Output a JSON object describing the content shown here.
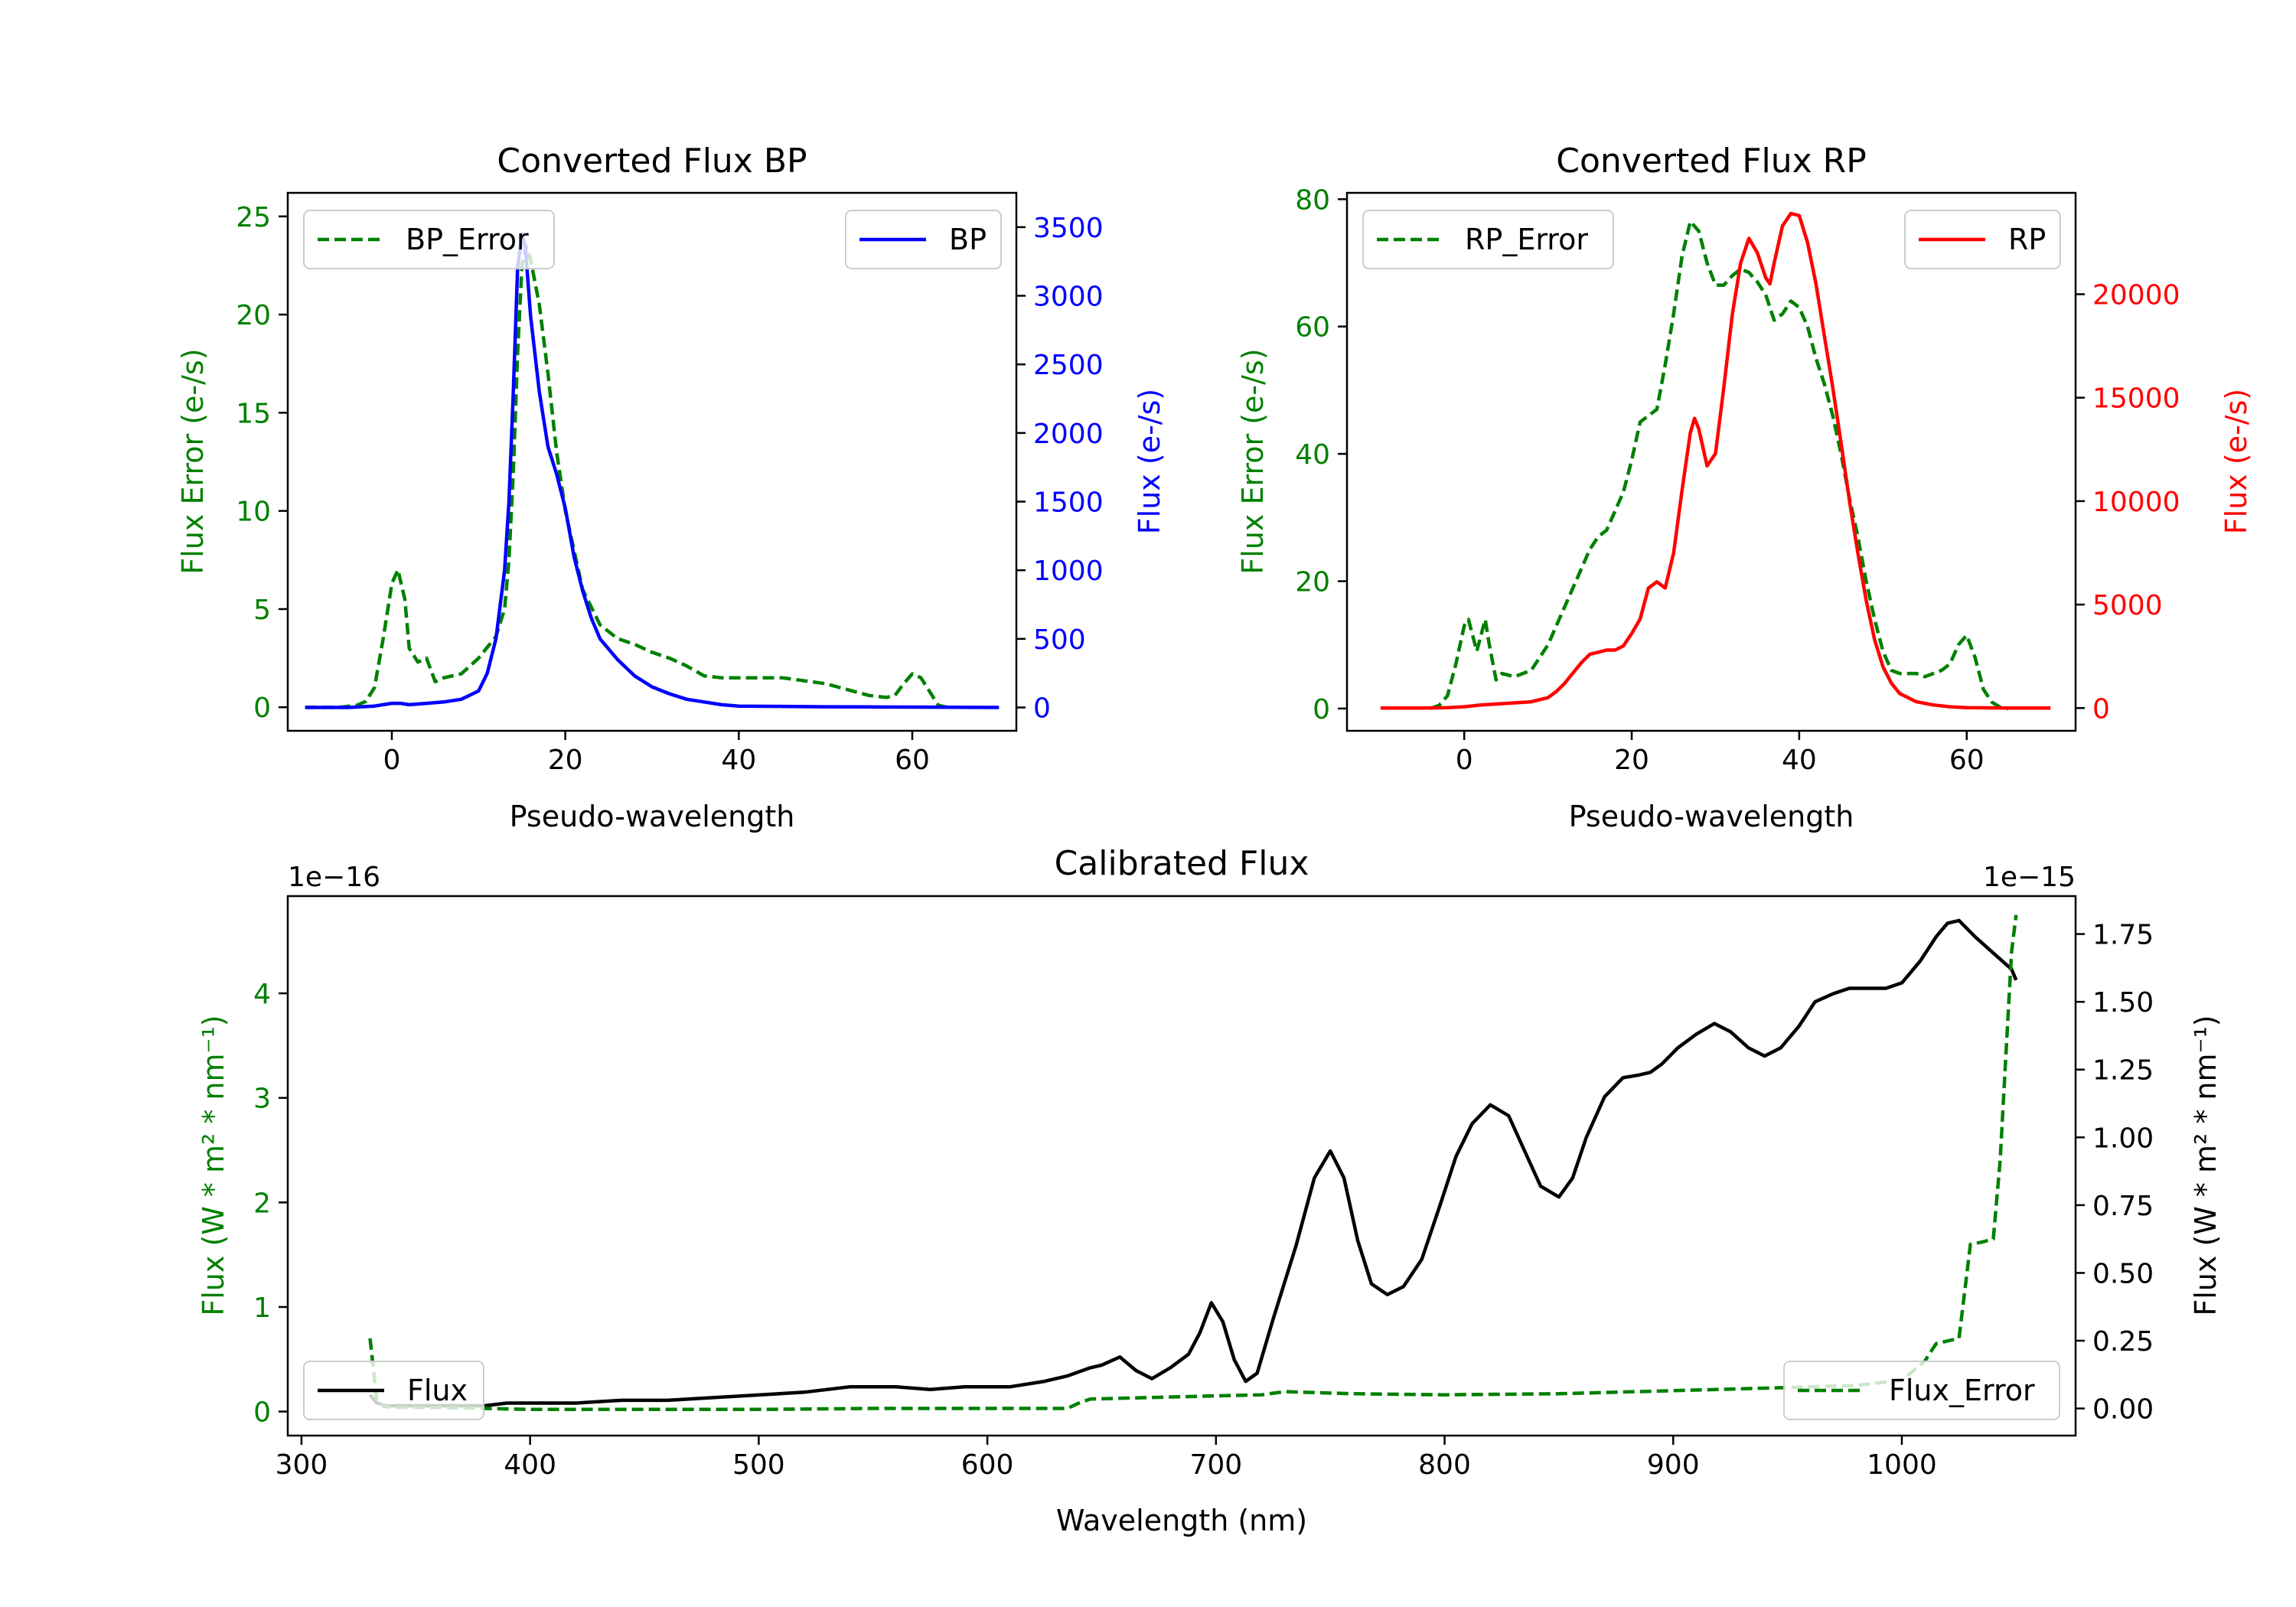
{
  "colors": {
    "green": "#008000",
    "blue": "#0000ff",
    "red": "#ff0000",
    "black": "#000000"
  },
  "chart_data": [
    {
      "id": "bp",
      "type": "line",
      "title": "Converted Flux BP",
      "xlabel": "Pseudo-wavelength",
      "ylabel_left": "Flux Error (e-/s)",
      "ylabel_right": "Flux (e-/s)",
      "xlim": [
        -12,
        72
      ],
      "ylim_left": [
        -1.2,
        26.2
      ],
      "ylim_right": [
        -170,
        3750
      ],
      "xticks": [
        0,
        20,
        40,
        60
      ],
      "yticks_left": [
        0,
        5,
        10,
        15,
        20,
        25
      ],
      "yticks_right": [
        0,
        500,
        1000,
        1500,
        2000,
        2500,
        3000,
        3500
      ],
      "legend_left": "BP_Error",
      "legend_right": "BP",
      "series": [
        {
          "name": "BP_Error",
          "axis": "left",
          "color": "green",
          "dash": true,
          "x": [
            -10,
            -6,
            -4,
            -3,
            -2,
            -1,
            0,
            0.7,
            1.5,
            2,
            3,
            4,
            5,
            6,
            8,
            10,
            12,
            13,
            13.5,
            14,
            14.5,
            15,
            15.5,
            16,
            17,
            18,
            19,
            20,
            22,
            24,
            26,
            28,
            30,
            32,
            34,
            36,
            38,
            40,
            45,
            50,
            55,
            57,
            58,
            59,
            60,
            61,
            62,
            63,
            64
          ],
          "y": [
            0,
            0,
            0.1,
            0.3,
            1.0,
            3.5,
            6.3,
            7.0,
            5.5,
            3.0,
            2.3,
            2.5,
            1.3,
            1.5,
            1.7,
            2.5,
            3.6,
            5.0,
            7.5,
            12.0,
            18.0,
            22.5,
            23.5,
            22.8,
            20.5,
            17.0,
            13.0,
            10.0,
            6.0,
            4.2,
            3.5,
            3.2,
            2.8,
            2.5,
            2.1,
            1.6,
            1.5,
            1.5,
            1.5,
            1.2,
            0.6,
            0.5,
            0.6,
            1.2,
            1.7,
            1.5,
            0.8,
            0.1,
            0
          ]
        },
        {
          "name": "BP",
          "axis": "right",
          "color": "blue",
          "dash": false,
          "x": [
            -10,
            -5,
            -2,
            0,
            1,
            2,
            4,
            6,
            8,
            10,
            11,
            12,
            13,
            13.5,
            14,
            14.5,
            15,
            15.4,
            16,
            17,
            18,
            19,
            20,
            21,
            22,
            23,
            24,
            26,
            28,
            30,
            32,
            34,
            36,
            38,
            40,
            45,
            50,
            55,
            60,
            65,
            70
          ],
          "y": [
            0,
            0,
            10,
            30,
            30,
            20,
            30,
            40,
            60,
            120,
            250,
            500,
            1000,
            1500,
            2300,
            3200,
            3450,
            3350,
            2850,
            2300,
            1900,
            1700,
            1450,
            1100,
            850,
            650,
            500,
            350,
            230,
            150,
            100,
            60,
            40,
            20,
            10,
            8,
            5,
            4,
            3,
            2,
            0
          ]
        }
      ]
    },
    {
      "id": "rp",
      "type": "line",
      "title": "Converted Flux RP",
      "xlabel": "Pseudo-wavelength",
      "ylabel_left": "Flux Error (e-/s)",
      "ylabel_right": "Flux (e-/s)",
      "xlim": [
        -14,
        73
      ],
      "ylim_left": [
        -3.5,
        81
      ],
      "ylim_right": [
        -1100,
        24900
      ],
      "xticks": [
        0,
        20,
        40,
        60
      ],
      "yticks_left": [
        0,
        20,
        40,
        60,
        80
      ],
      "yticks_right": [
        0,
        5000,
        10000,
        15000,
        20000
      ],
      "legend_left": "RP_Error",
      "legend_right": "RP",
      "series": [
        {
          "name": "RP_Error",
          "axis": "left",
          "color": "green",
          "dash": true,
          "x": [
            -4,
            -3,
            -2,
            -1,
            0,
            0.5,
            1.5,
            2.5,
            3,
            3.8,
            4.5,
            6,
            8,
            10,
            12,
            14,
            15,
            16,
            17,
            18,
            19,
            20,
            21,
            22,
            23,
            24,
            25,
            26,
            27,
            28,
            29,
            30,
            31,
            32,
            33,
            34,
            35,
            36,
            37,
            38,
            39,
            40,
            41,
            42,
            43,
            44,
            45,
            46,
            47,
            48,
            49,
            50,
            51,
            52,
            53,
            54,
            55,
            56,
            57,
            58,
            59,
            60,
            61,
            62,
            63,
            64,
            65
          ],
          "y": [
            0,
            0.5,
            2,
            7,
            13,
            14,
            9,
            14,
            10,
            4.5,
            5.5,
            5,
            6,
            10,
            16,
            22,
            25,
            27,
            28,
            31,
            34,
            39,
            45,
            46,
            47,
            54,
            62,
            71,
            76.5,
            75,
            70,
            66.5,
            66.5,
            68,
            69,
            68.5,
            67,
            65,
            61,
            62,
            64,
            63,
            60,
            55,
            51,
            46,
            40,
            33,
            27,
            20,
            14,
            9,
            6,
            5.5,
            5.5,
            5.5,
            5,
            5.5,
            6,
            7,
            10,
            11.5,
            8,
            3,
            1,
            0.2,
            0
          ]
        },
        {
          "name": "RP",
          "axis": "right",
          "color": "red",
          "dash": false,
          "x": [
            -10,
            -5,
            -2,
            0,
            2,
            4,
            6,
            8,
            10,
            11,
            12,
            13,
            14,
            15,
            16,
            17,
            18,
            19,
            20,
            21,
            22,
            23,
            24,
            25,
            26,
            27,
            27.5,
            28,
            29,
            30,
            31,
            32,
            33,
            34,
            35,
            36,
            36.5,
            37,
            38,
            39,
            40,
            41,
            42,
            43,
            44,
            45,
            46,
            47,
            48,
            49,
            50,
            51,
            52,
            54,
            56,
            58,
            60,
            65,
            70
          ],
          "y": [
            0,
            0,
            20,
            60,
            150,
            200,
            250,
            300,
            500,
            800,
            1200,
            1700,
            2200,
            2600,
            2700,
            2800,
            2800,
            3000,
            3600,
            4300,
            5800,
            6100,
            5800,
            7500,
            10500,
            13300,
            14000,
            13500,
            11700,
            12300,
            15500,
            19000,
            21500,
            22700,
            22000,
            20800,
            20500,
            21500,
            23300,
            23900,
            23800,
            22500,
            20500,
            18000,
            15500,
            12800,
            10000,
            7500,
            5200,
            3300,
            2000,
            1200,
            700,
            300,
            150,
            60,
            20,
            0,
            0
          ]
        }
      ]
    },
    {
      "id": "cal",
      "type": "line",
      "title": "Calibrated Flux",
      "xlabel": "Wavelength (nm)",
      "ylabel_left": "Flux (W * m² * nm⁻¹)",
      "ylabel_right": "Flux (W * m² * nm⁻¹)",
      "offset_left": "1e−16",
      "offset_right": "1e−15",
      "xlim": [
        294,
        1076
      ],
      "ylim_left": [
        -0.23,
        4.93
      ],
      "ylim_right": [
        -0.1,
        1.89
      ],
      "xticks": [
        300,
        400,
        500,
        600,
        700,
        800,
        900,
        1000
      ],
      "yticks_left": [
        0,
        1,
        2,
        3,
        4
      ],
      "yticks_right": [
        "0.00",
        "0.25",
        "0.50",
        "0.75",
        "1.00",
        "1.25",
        "1.50",
        "1.75"
      ],
      "legend_left": "Flux",
      "legend_right": "Flux_Error",
      "series": [
        {
          "name": "Flux",
          "axis": "right",
          "color": "black",
          "dash": false,
          "x": [
            330,
            333,
            337,
            342,
            350,
            360,
            370,
            380,
            390,
            400,
            420,
            440,
            460,
            480,
            500,
            520,
            540,
            560,
            575,
            590,
            610,
            625,
            635,
            645,
            650,
            658,
            665,
            672,
            680,
            688,
            693,
            698,
            703,
            708,
            713,
            718,
            725,
            735,
            743,
            750,
            756,
            762,
            768,
            775,
            782,
            790,
            798,
            805,
            812,
            820,
            828,
            835,
            842,
            850,
            856,
            862,
            870,
            878,
            885,
            890,
            895,
            902,
            910,
            918,
            925,
            933,
            940,
            947,
            955,
            962,
            970,
            977,
            985,
            993,
            1000,
            1008,
            1015,
            1020,
            1025,
            1032,
            1040,
            1048,
            1050
          ],
          "y": [
            0.05,
            0.02,
            0.01,
            0.01,
            0.01,
            0.01,
            0.01,
            0.01,
            0.02,
            0.02,
            0.02,
            0.03,
            0.03,
            0.04,
            0.05,
            0.06,
            0.08,
            0.08,
            0.07,
            0.08,
            0.08,
            0.1,
            0.12,
            0.15,
            0.16,
            0.19,
            0.14,
            0.11,
            0.15,
            0.2,
            0.28,
            0.39,
            0.32,
            0.18,
            0.1,
            0.13,
            0.33,
            0.6,
            0.85,
            0.95,
            0.85,
            0.62,
            0.46,
            0.42,
            0.45,
            0.55,
            0.75,
            0.93,
            1.05,
            1.12,
            1.08,
            0.95,
            0.82,
            0.78,
            0.85,
            1.0,
            1.15,
            1.22,
            1.23,
            1.24,
            1.27,
            1.33,
            1.38,
            1.42,
            1.39,
            1.33,
            1.3,
            1.33,
            1.41,
            1.5,
            1.53,
            1.55,
            1.55,
            1.55,
            1.57,
            1.65,
            1.74,
            1.79,
            1.8,
            1.74,
            1.68,
            1.62,
            1.58
          ]
        },
        {
          "name": "Flux_Error",
          "axis": "left",
          "color": "green",
          "dash": true,
          "x": [
            330,
            333,
            336,
            340,
            350,
            360,
            380,
            400,
            450,
            500,
            550,
            600,
            635,
            640,
            645,
            700,
            720,
            730,
            760,
            800,
            850,
            900,
            950,
            980,
            1000,
            1010,
            1015,
            1025,
            1030,
            1035,
            1040,
            1043,
            1046,
            1048,
            1050
          ],
          "y": [
            0.7,
            0.1,
            0.05,
            0.04,
            0.04,
            0.04,
            0.03,
            0.02,
            0.02,
            0.02,
            0.03,
            0.03,
            0.03,
            0.08,
            0.12,
            0.15,
            0.16,
            0.19,
            0.17,
            0.16,
            0.17,
            0.2,
            0.23,
            0.25,
            0.3,
            0.48,
            0.65,
            0.7,
            1.6,
            1.62,
            1.65,
            2.4,
            3.6,
            4.4,
            4.75
          ]
        }
      ]
    }
  ]
}
